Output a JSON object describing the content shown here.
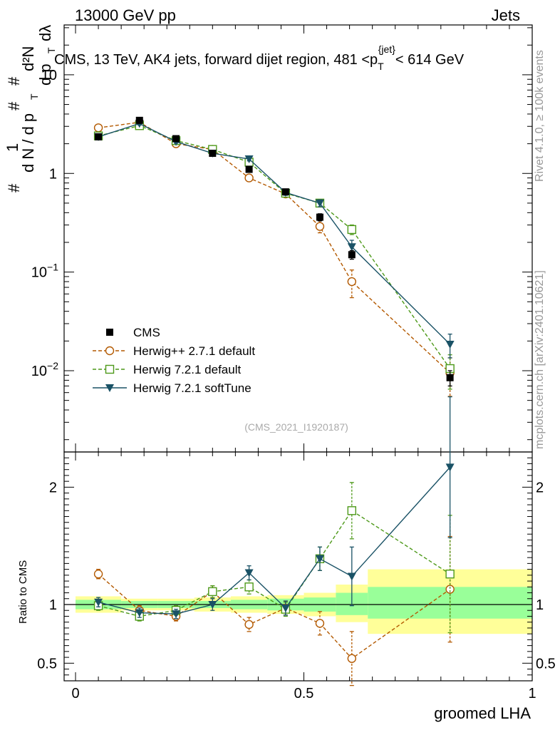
{
  "header": {
    "left": "13000 GeV pp",
    "right": "Jets"
  },
  "side_text": {
    "rivet": "Rivet 4.1.0, ≥ 100k events",
    "mcplots": "mcplots.cern.ch [arXiv:2401.10621]"
  },
  "colors": {
    "cms": "#000000",
    "herwigpp": "#b35900",
    "herwig721": "#4d9919",
    "softtune": "#1a5266",
    "band_green": "#99ff99",
    "band_yellow": "#ffff99"
  },
  "chart_data": [
    {
      "type": "scatter",
      "panel": "main",
      "title": "CMS, 13 TeV, AK4 jets, forward dijet region, 481 <p_T^{jet}< 614 GeV",
      "title_parts": {
        "prefix": "CMS, 13 TeV, AK4 jets, forward dijet region, 481 <p",
        "sub": "T",
        "sup": "{jet}",
        "suffix": "< 614 GeV"
      },
      "ylabel": "1/(dN/dp_T) d²N/(dp_T dλ)",
      "ylabel_parts": {
        "hash": "#",
        "one": "1",
        "dN": "d N / d p",
        "T": "T",
        "d2N": "d²N",
        "dpT": "d p",
        "dlam": "dλ"
      },
      "yscale": "log",
      "ylim": [
        0.0015,
        32
      ],
      "yticks": [
        0.01,
        0.1,
        1,
        10
      ],
      "ytick_labels": [
        {
          "base": "10",
          "exp": "−2"
        },
        {
          "base": "10",
          "exp": "−1"
        },
        {
          "base": "1",
          "exp": ""
        },
        {
          "base": "10",
          "exp": ""
        }
      ],
      "xlim": [
        -0.025,
        1.0
      ],
      "x": [
        0.05,
        0.14,
        0.22,
        0.3,
        0.38,
        0.46,
        0.535,
        0.605,
        0.82
      ],
      "series": [
        {
          "name": "CMS",
          "style": "square-filled",
          "values": [
            2.35,
            3.45,
            2.25,
            1.6,
            1.1,
            0.65,
            0.36,
            0.15,
            0.0085
          ],
          "err": [
            0.1,
            0.15,
            0.1,
            0.08,
            0.06,
            0.04,
            0.03,
            0.015,
            0.0015
          ]
        },
        {
          "name": "Herwig++ 2.7.1 default",
          "style": "circle-open-dashed",
          "values": [
            2.9,
            3.3,
            2.0,
            1.75,
            0.9,
            0.62,
            0.29,
            0.08,
            0.0095
          ],
          "err": [
            0.1,
            0.12,
            0.1,
            0.08,
            0.06,
            0.04,
            0.04,
            0.025,
            0.004
          ]
        },
        {
          "name": "Herwig 7.2.1 default",
          "style": "square-open-dashed",
          "values": [
            2.4,
            3.05,
            2.15,
            1.75,
            1.3,
            0.63,
            0.5,
            0.27,
            0.0105
          ],
          "err": [
            0.08,
            0.1,
            0.08,
            0.08,
            0.06,
            0.04,
            0.04,
            0.03,
            0.004
          ]
        },
        {
          "name": "Herwig 7.2.1 softTune",
          "style": "triangle-down-solid",
          "values": [
            2.35,
            3.2,
            2.1,
            1.6,
            1.4,
            0.64,
            0.5,
            0.18,
            0.0185
          ],
          "err": [
            0.08,
            0.1,
            0.08,
            0.07,
            0.06,
            0.04,
            0.04,
            0.03,
            0.005
          ]
        }
      ],
      "watermark": "(CMS_2021_I1920187)"
    },
    {
      "type": "scatter",
      "panel": "ratio",
      "ylabel": "Ratio to CMS",
      "xlabel": "groomed LHA",
      "ylim": [
        0.35,
        2.3
      ],
      "yticks": [
        0.5,
        1,
        2
      ],
      "ytick_labels": [
        "0.5",
        "1",
        "2"
      ],
      "xticks": [
        0,
        0.5,
        1
      ],
      "xtick_labels": [
        "0",
        "0.5",
        "1"
      ],
      "bins": [
        {
          "lo": 0.0,
          "hi": 0.1,
          "green": [
            0.96,
            1.04
          ],
          "yellow": [
            0.93,
            1.07
          ]
        },
        {
          "lo": 0.1,
          "hi": 0.18,
          "green": [
            0.97,
            1.03
          ],
          "yellow": [
            0.95,
            1.05
          ]
        },
        {
          "lo": 0.18,
          "hi": 0.26,
          "green": [
            0.97,
            1.03
          ],
          "yellow": [
            0.95,
            1.05
          ]
        },
        {
          "lo": 0.26,
          "hi": 0.34,
          "green": [
            0.97,
            1.03
          ],
          "yellow": [
            0.94,
            1.06
          ]
        },
        {
          "lo": 0.34,
          "hi": 0.42,
          "green": [
            0.96,
            1.04
          ],
          "yellow": [
            0.93,
            1.07
          ]
        },
        {
          "lo": 0.42,
          "hi": 0.5,
          "green": [
            0.95,
            1.05
          ],
          "yellow": [
            0.92,
            1.08
          ]
        },
        {
          "lo": 0.5,
          "hi": 0.57,
          "green": [
            0.94,
            1.06
          ],
          "yellow": [
            0.9,
            1.1
          ]
        },
        {
          "lo": 0.57,
          "hi": 0.64,
          "green": [
            0.91,
            1.1
          ],
          "yellow": [
            0.85,
            1.17
          ]
        },
        {
          "lo": 0.64,
          "hi": 1.0,
          "green": [
            0.88,
            1.15
          ],
          "yellow": [
            0.75,
            1.3
          ]
        }
      ],
      "x": [
        0.05,
        0.14,
        0.22,
        0.3,
        0.38,
        0.46,
        0.535,
        0.605,
        0.82
      ],
      "series": [
        {
          "name": "Herwig++ 2.7.1 default",
          "values": [
            1.26,
            0.95,
            0.9,
            1.11,
            0.83,
            0.97,
            0.84,
            0.54,
            1.13
          ],
          "err": [
            0.04,
            0.04,
            0.04,
            0.05,
            0.06,
            0.06,
            0.1,
            0.23,
            0.45
          ]
        },
        {
          "name": "Herwig 7.2.1 default",
          "values": [
            0.99,
            0.9,
            0.95,
            1.11,
            1.15,
            0.96,
            1.39,
            1.8,
            1.26
          ],
          "err": [
            0.04,
            0.04,
            0.04,
            0.05,
            0.06,
            0.06,
            0.1,
            0.24,
            0.5
          ]
        },
        {
          "name": "Herwig 7.2.1 softTune",
          "values": [
            1.02,
            0.93,
            0.92,
            1.0,
            1.27,
            0.97,
            1.39,
            1.24,
            2.17
          ],
          "err": [
            0.04,
            0.04,
            0.04,
            0.05,
            0.06,
            0.06,
            0.1,
            0.25,
            0.6
          ]
        }
      ]
    }
  ]
}
